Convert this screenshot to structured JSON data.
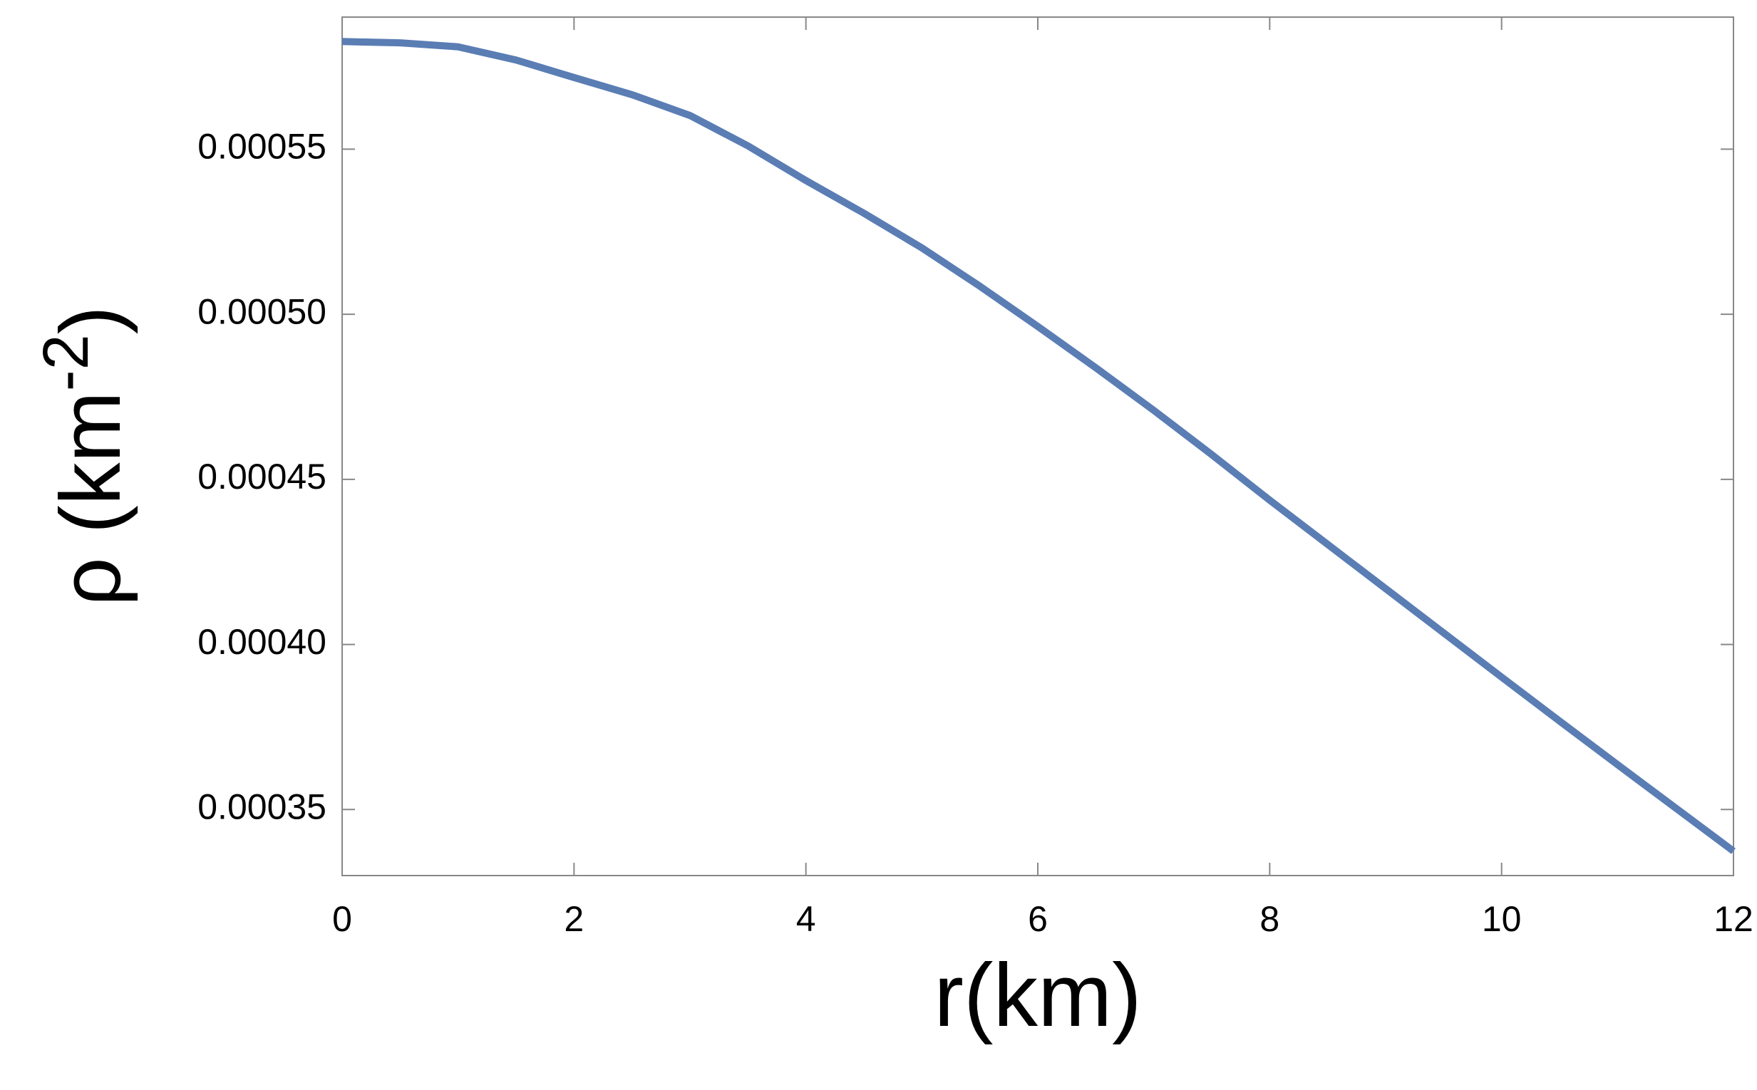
{
  "chart_data": {
    "type": "line",
    "xlabel": "r(km)",
    "ylabel": [
      "ρ (km",
      "-2",
      ")"
    ],
    "x": [
      0,
      0.5,
      1,
      1.5,
      2,
      2.5,
      3,
      3.5,
      4,
      4.5,
      5,
      5.5,
      6,
      6.5,
      7,
      7.5,
      8,
      8.5,
      9,
      9.5,
      10,
      10.5,
      11,
      11.5,
      12
    ],
    "series": [
      {
        "color": "#5a7db4",
        "values": [
          0.0005826,
          0.0005822,
          0.000581,
          0.000577,
          0.0005717,
          0.0005665,
          0.0005602,
          0.000551,
          0.0005405,
          0.0005306,
          0.0005201,
          0.0005085,
          0.0004963,
          0.0004838,
          0.0004709,
          0.0004575,
          0.0004437,
          0.0004303,
          0.0004169,
          0.0004035,
          0.0003901,
          0.0003768,
          0.0003636,
          0.0003505,
          0.0003374
        ]
      }
    ],
    "xlim": [
      0,
      12
    ],
    "xticks": [
      0,
      2,
      4,
      6,
      8,
      10,
      12
    ],
    "ylim": [
      0.00033,
      0.00059
    ],
    "yticks": [
      0.00035,
      {
        "value": 0.0004,
        "label": "0.00040"
      },
      0.00045,
      {
        "value": 0.0005,
        "label": "0.00050"
      },
      0.00055
    ]
  }
}
